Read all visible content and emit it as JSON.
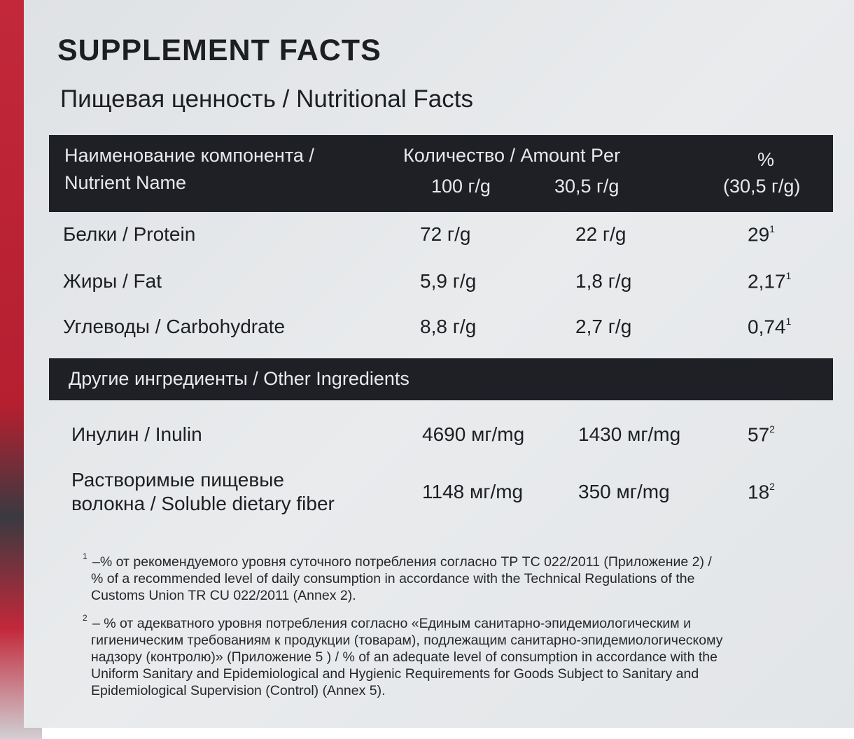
{
  "title": "SUPPLEMENT FACTS",
  "subtitle": "Пищевая ценность / Nutritional Facts",
  "table": {
    "header": {
      "name": [
        "Наименование компонента /",
        "Nutrient Name"
      ],
      "amount": "Количество / Amount Per",
      "col1": "100 г/g",
      "col2": "30,5 г/g",
      "percent": [
        "%",
        "(30,5 г/g)"
      ]
    },
    "rows": [
      {
        "name": [
          "Белки / Protein"
        ],
        "per100": "72 г/g",
        "perServing": "22 г/g",
        "percent": "29",
        "note": "1"
      },
      {
        "name": [
          "Жиры / Fat"
        ],
        "per100": "5,9 г/g",
        "perServing": "1,8 г/g",
        "percent": "2,17",
        "note": "1"
      },
      {
        "name": [
          "Углеводы / Carbohydrate"
        ],
        "per100": "8,8 г/g",
        "perServing": "2,7 г/g",
        "percent": "0,74",
        "note": "1"
      }
    ],
    "section": "Другие ингредиенты / Other Ingredients",
    "other_rows": [
      {
        "name": [
          "Инулин / Inulin"
        ],
        "per100": "4690 мг/mg",
        "perServing": "1430 мг/mg",
        "percent": "57",
        "note": "2"
      },
      {
        "name": [
          "Растворимые пищевые",
          "волокна / Soluble dietary fiber"
        ],
        "per100": "1148 мг/mg",
        "perServing": "350 мг/mg",
        "percent": "18",
        "note": "2"
      }
    ]
  },
  "footnotes": [
    {
      "marker": "1",
      "lines": [
        "–% от рекомендуемого уровня суточного потребления согласно ТР ТС 022/2011 (Приложение 2) /",
        "% of a recommended level of daily consumption in accordance with the Technical Regulations of the",
        "Customs Union TR CU 022/2011 (Annex 2)."
      ]
    },
    {
      "marker": "2",
      "lines": [
        "– % от адекватного уровня потребления согласно «Единым санитарно-эпидемиологическим и",
        "гигиеническим требованиям к продукции (товарам), подлежащим санитарно-эпидемиологическому",
        "надзору (контролю)» (Приложение 5 ) / % of an adequate level of consumption in accordance with the",
        "Uniform Sanitary and Epidemiological and Hygienic Requirements for Goods Subject to Sanitary and",
        "Epidemiological Supervision (Control) (Annex 5)."
      ]
    }
  ]
}
